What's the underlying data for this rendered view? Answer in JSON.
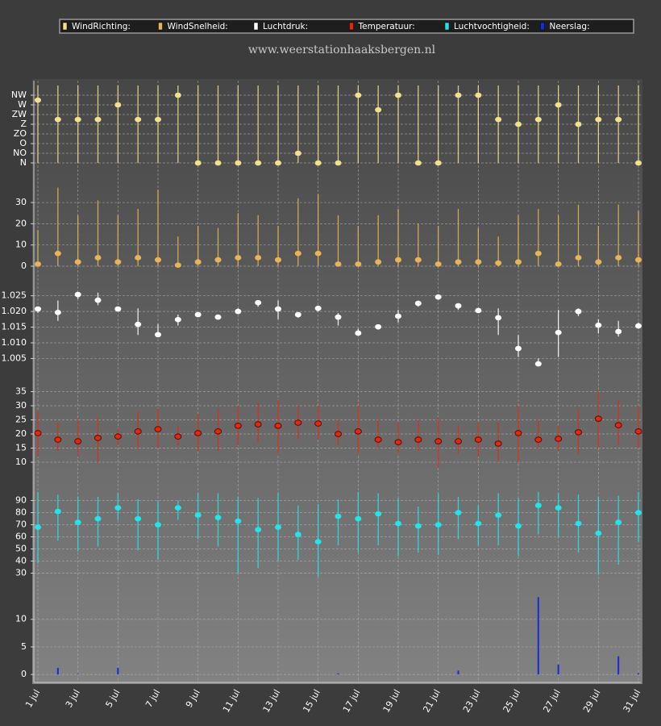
{
  "chart_data": [
    {
      "type": "errorbar",
      "title": "www.weerstationhaaksbergen.nl",
      "series": [
        {
          "name": "WindRichting:",
          "color": "#f3df8c",
          "values": [
            292,
            202,
            202,
            202,
            270,
            202,
            202,
            315,
            0,
            0,
            0,
            0,
            0,
            45,
            0,
            0,
            315,
            247,
            315,
            0,
            0,
            315,
            315,
            202,
            180,
            202,
            270,
            180,
            202,
            202,
            0
          ],
          "low": [
            0,
            0,
            0,
            0,
            0,
            0,
            0,
            0,
            0,
            0,
            0,
            0,
            0,
            0,
            0,
            0,
            0,
            0,
            0,
            0,
            0,
            0,
            0,
            0,
            0,
            0,
            0,
            0,
            0,
            0,
            0
          ],
          "high": [
            360,
            360,
            360,
            360,
            360,
            360,
            360,
            360,
            360,
            360,
            360,
            360,
            360,
            360,
            360,
            360,
            360,
            360,
            360,
            360,
            360,
            360,
            360,
            360,
            360,
            360,
            360,
            360,
            360,
            360,
            360
          ]
        }
      ],
      "ylim": [
        0,
        360
      ],
      "yticks": [
        {
          "value": 0,
          "label": "N"
        },
        {
          "value": 45,
          "label": "NO"
        },
        {
          "value": 90,
          "label": "O"
        },
        {
          "value": 135,
          "label": "ZO"
        },
        {
          "value": 180,
          "label": "Z"
        },
        {
          "value": 225,
          "label": "ZW"
        },
        {
          "value": 270,
          "label": "W"
        },
        {
          "value": 315,
          "label": "NW"
        }
      ],
      "grid": true
    },
    {
      "type": "errorbar",
      "series": [
        {
          "name": "WindSnelheid:",
          "color": "#e9b458",
          "values": [
            1,
            6,
            2,
            4,
            2,
            4,
            3,
            0.5,
            2,
            3,
            4,
            4,
            3,
            6,
            6,
            1,
            1,
            2,
            3,
            3,
            1,
            2,
            2,
            1.5,
            2,
            6,
            1,
            4,
            2,
            4,
            3
          ],
          "low": [
            0,
            0,
            0,
            0,
            0,
            0,
            0,
            0,
            0,
            0,
            0,
            0,
            0,
            0,
            0,
            0,
            0,
            0,
            0,
            0,
            0,
            0,
            0,
            0,
            0,
            0,
            0,
            0,
            0,
            0,
            0
          ],
          "high": [
            17,
            37,
            24,
            31,
            24,
            27,
            36,
            14,
            19,
            18,
            25,
            24,
            19,
            32,
            34,
            24,
            19,
            24,
            27,
            20,
            19,
            27,
            18,
            14,
            24,
            27,
            24,
            29,
            19,
            29,
            26
          ]
        }
      ],
      "ylim": [
        0,
        38
      ],
      "yticks": [
        0,
        10,
        20,
        30
      ],
      "grid": true
    },
    {
      "type": "errorbar",
      "series": [
        {
          "name": "Luchtdruk:",
          "color": "#ffffff",
          "values": [
            1.0208,
            1.0197,
            1.0254,
            1.0236,
            1.0208,
            1.0159,
            1.0126,
            1.0174,
            1.019,
            1.0182,
            1.02,
            1.0228,
            1.0208,
            1.019,
            1.021,
            1.0182,
            1.0131,
            1.0151,
            1.0185,
            1.0226,
            1.0246,
            1.0218,
            1.0203,
            1.018,
            1.0082,
            1.0033,
            1.0133,
            1.02,
            1.0156,
            1.0136,
            1.0154
          ],
          "low": [
            1.0195,
            1.017,
            1.024,
            1.022,
            1.0205,
            1.0125,
            1.012,
            1.0155,
            1.0185,
            1.018,
            1.0195,
            1.0215,
            1.0175,
            1.018,
            1.02,
            1.0155,
            1.0125,
            1.0145,
            1.0165,
            1.0215,
            1.024,
            1.0205,
            1.02,
            1.0125,
            1.0055,
            1.003,
            1.0055,
            1.0185,
            1.013,
            1.012,
            1.0145
          ],
          "high": [
            1.0215,
            1.0235,
            1.026,
            1.026,
            1.021,
            1.021,
            1.016,
            1.019,
            1.019,
            1.0185,
            1.021,
            1.0235,
            1.0235,
            1.0195,
            1.0215,
            1.0195,
            1.0145,
            1.0155,
            1.0205,
            1.0235,
            1.025,
            1.0225,
            1.0205,
            1.021,
            1.0125,
            1.005,
            1.0205,
            1.021,
            1.0175,
            1.017,
            1.0165
          ]
        }
      ],
      "ylim": [
        1.001,
        1.028
      ],
      "yticks": [
        1.005,
        {
          "value": 1.01,
          "label": "1.010"
        },
        1.015,
        {
          "value": 1.02,
          "label": "1.020"
        },
        1.025
      ],
      "grid": true
    },
    {
      "type": "errorbar",
      "series": [
        {
          "name": "Temperatuur:",
          "color": "#e02a10",
          "values": [
            20.3,
            18,
            17.4,
            18.6,
            19.1,
            20.9,
            21.7,
            19.1,
            20.3,
            20.9,
            22.9,
            23.4,
            22.9,
            24,
            23.7,
            20,
            20.9,
            18,
            17.1,
            18,
            17.4,
            17.4,
            18,
            16.6,
            20.3,
            18,
            18.3,
            20.6,
            25.4,
            23.1,
            20.9
          ],
          "low": [
            12,
            14,
            12,
            10,
            16,
            15,
            15,
            16,
            14,
            14,
            16,
            17,
            13,
            18,
            18,
            16,
            13,
            15,
            13,
            14,
            8,
            13,
            12,
            10,
            10,
            15,
            14,
            13,
            15,
            16,
            15
          ],
          "high": [
            28,
            24,
            25,
            26,
            22,
            28,
            29,
            23,
            27,
            29,
            30,
            31,
            32,
            30,
            30,
            25,
            30,
            25,
            24,
            25,
            26,
            23,
            24,
            24,
            30,
            25,
            23,
            29,
            35,
            32,
            30
          ]
        }
      ],
      "ylim": [
        7,
        37
      ],
      "yticks": [
        10,
        15,
        20,
        25,
        30,
        35
      ],
      "grid": true
    },
    {
      "type": "errorbar",
      "series": [
        {
          "name": "Luchtvochtigheid:",
          "color": "#22e4ec",
          "values": [
            68,
            81,
            72,
            75,
            84,
            75,
            70,
            84,
            78,
            76,
            73,
            66,
            68,
            62,
            56,
            77,
            75,
            79,
            71,
            69,
            70,
            80,
            71,
            78,
            69,
            86,
            84,
            71,
            63,
            72,
            80
          ],
          "low": [
            38,
            57,
            48,
            52,
            74,
            49,
            41,
            74,
            58,
            52,
            30,
            34,
            40,
            41,
            27,
            53,
            47,
            53,
            44,
            47,
            45,
            58,
            53,
            53,
            44,
            62,
            60,
            47,
            29,
            37,
            56
          ],
          "high": [
            97,
            95,
            93,
            93,
            96,
            91,
            90,
            90,
            96,
            96,
            93,
            92,
            96,
            86,
            87,
            91,
            97,
            96,
            92,
            85,
            96,
            93,
            86,
            96,
            92,
            97,
            96,
            95,
            93,
            94,
            97
          ]
        }
      ],
      "ylim": [
        27,
        97
      ],
      "yticks": [
        30,
        40,
        50,
        60,
        70,
        80,
        90
      ],
      "grid": true
    },
    {
      "type": "bar",
      "categories": [
        "1 jul",
        null,
        "3 jul",
        null,
        "5 jul",
        null,
        "7 jul",
        null,
        "9 jul",
        null,
        "11 jul",
        null,
        "13 jul",
        null,
        "15 jul",
        null,
        "17 jul",
        null,
        "19 jul",
        null,
        "21 jul",
        null,
        "23 jul",
        null,
        "25 jul",
        null,
        "27 jul",
        null,
        "29 jul",
        null,
        "31 jul"
      ],
      "series": [
        {
          "name": "Neerslag:",
          "color": "#1a2ad8",
          "values": [
            0,
            1.2,
            0.1,
            0,
            1.2,
            0,
            0,
            0,
            0,
            0,
            0,
            0,
            0,
            0,
            0,
            0.2,
            0,
            0,
            0,
            0,
            0,
            0.7,
            0,
            0,
            0,
            14,
            1.8,
            0,
            0,
            3.3,
            0.2
          ]
        }
      ],
      "ylim": [
        -1.3,
        14.2
      ],
      "yticks": [
        0,
        5,
        10
      ],
      "grid": true
    }
  ]
}
